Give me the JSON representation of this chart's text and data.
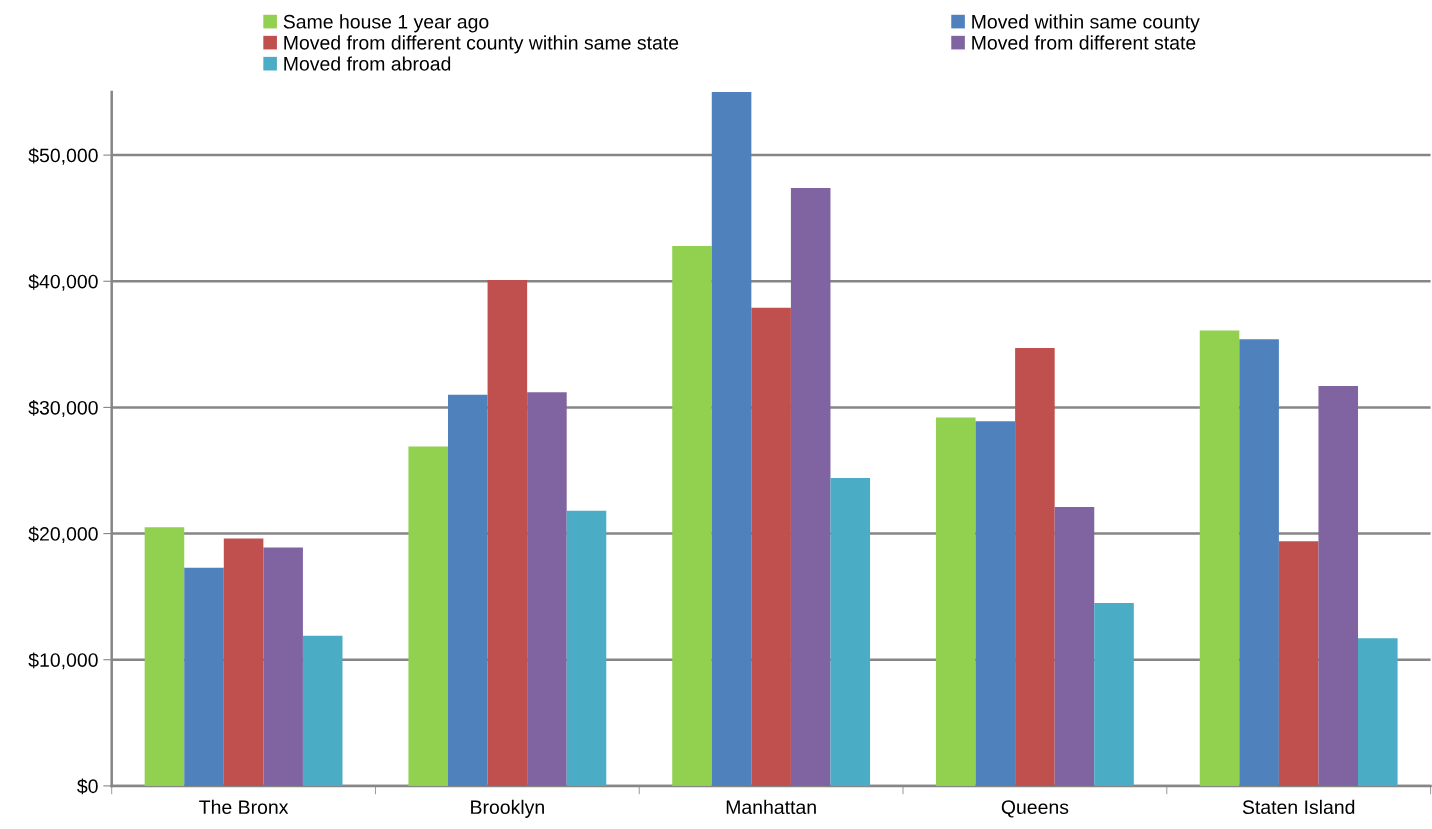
{
  "chart_data": {
    "type": "bar",
    "categories": [
      "The Bronx",
      "Brooklyn",
      "Manhattan",
      "Queens",
      "Staten Island"
    ],
    "series": [
      {
        "name": "Same house 1 year ago",
        "color": "#92d050",
        "values": [
          20500,
          26900,
          42800,
          29200,
          36100
        ]
      },
      {
        "name": "Moved within same county",
        "color": "#4f81bd",
        "values": [
          17300,
          31000,
          55000,
          28900,
          35400
        ]
      },
      {
        "name": "Moved from different county within same state",
        "color": "#c0504d",
        "values": [
          19600,
          40100,
          37900,
          34700,
          19400
        ]
      },
      {
        "name": "Moved from different state",
        "color": "#8064a2",
        "values": [
          18900,
          31200,
          47400,
          22100,
          31700
        ]
      },
      {
        "name": "Moved from abroad",
        "color": "#4bacc6",
        "values": [
          11900,
          21800,
          24400,
          14500,
          11700
        ]
      }
    ],
    "ylim": [
      0,
      55000
    ],
    "yticks": [
      {
        "value": 0,
        "label": "$0"
      },
      {
        "value": 10000,
        "label": "$10,000"
      },
      {
        "value": 20000,
        "label": "$20,000"
      },
      {
        "value": 30000,
        "label": "$30,000"
      },
      {
        "value": 40000,
        "label": "$40,000"
      },
      {
        "value": 50000,
        "label": "$50,000"
      }
    ],
    "grid": "y",
    "legend": "top"
  }
}
